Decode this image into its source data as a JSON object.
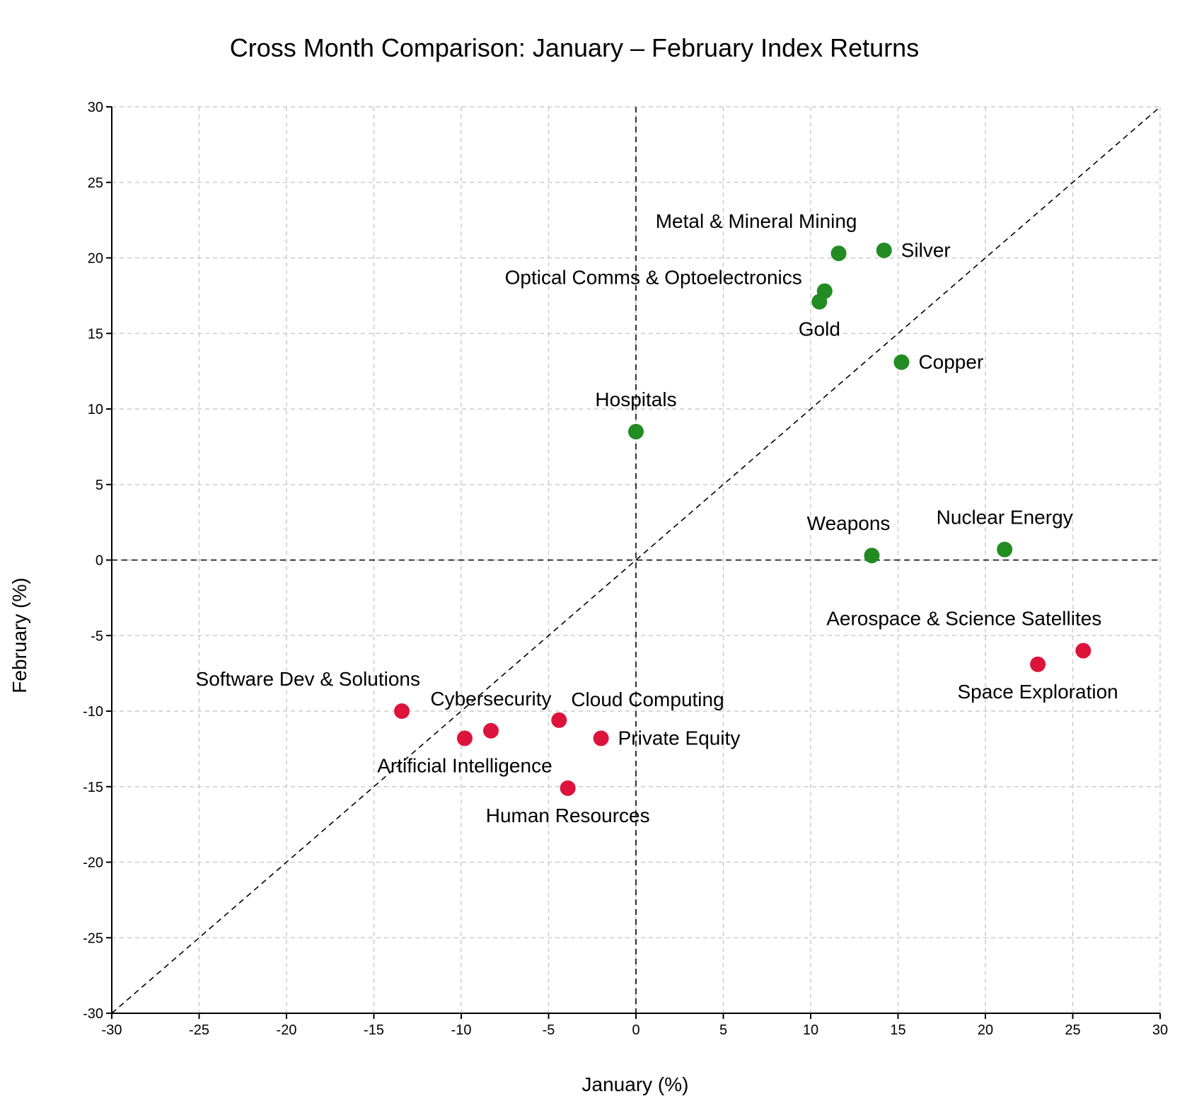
{
  "chart_data": {
    "type": "scatter",
    "title": "Cross Month Comparison: January – February Index Returns",
    "xlabel": "January (%)",
    "ylabel": "February (%)",
    "xlim": [
      -30,
      30
    ],
    "ylim": [
      -30,
      30
    ],
    "xticks": [
      -30,
      -25,
      -20,
      -15,
      -10,
      -5,
      0,
      5,
      10,
      15,
      20,
      25,
      30
    ],
    "yticks": [
      -30,
      -25,
      -20,
      -15,
      -10,
      -5,
      0,
      5,
      10,
      15,
      20,
      25,
      30
    ],
    "grid": true,
    "reference_lines": [
      "y = x",
      "x = 0",
      "y = 0"
    ],
    "colors": {
      "positive": "#228B22",
      "negative": "#DC143C"
    },
    "points": [
      {
        "name": "Metal & Mineral Mining",
        "x": 11.6,
        "y": 20.3,
        "group": "positive",
        "label_pos": "above-left"
      },
      {
        "name": "Silver",
        "x": 14.2,
        "y": 20.5,
        "group": "positive",
        "label_pos": "right"
      },
      {
        "name": "Optical Comms & Optoelectronics",
        "x": 10.8,
        "y": 17.8,
        "group": "positive",
        "label_pos": "left"
      },
      {
        "name": "Gold",
        "x": 10.5,
        "y": 17.1,
        "group": "positive",
        "label_pos": "below"
      },
      {
        "name": "Copper",
        "x": 15.2,
        "y": 13.1,
        "group": "positive",
        "label_pos": "right"
      },
      {
        "name": "Hospitals",
        "x": 0.0,
        "y": 8.5,
        "group": "positive",
        "label_pos": "above"
      },
      {
        "name": "Weapons",
        "x": 13.5,
        "y": 0.3,
        "group": "positive",
        "label_pos": "above-left"
      },
      {
        "name": "Nuclear Energy",
        "x": 21.1,
        "y": 0.7,
        "group": "positive",
        "label_pos": "above"
      },
      {
        "name": "Aerospace & Science Satellites",
        "x": 25.6,
        "y": -6.0,
        "group": "negative",
        "label_pos": "above-left"
      },
      {
        "name": "Space Exploration",
        "x": 23.0,
        "y": -6.9,
        "group": "negative",
        "label_pos": "below"
      },
      {
        "name": "Software Dev & Solutions",
        "x": -13.4,
        "y": -10.0,
        "group": "negative",
        "label_pos": "above-left"
      },
      {
        "name": "Cybersecurity",
        "x": -8.3,
        "y": -11.3,
        "group": "negative",
        "label_pos": "above"
      },
      {
        "name": "Artificial Intelligence",
        "x": -9.8,
        "y": -11.8,
        "group": "negative",
        "label_pos": "below"
      },
      {
        "name": "Cloud Computing",
        "x": -4.4,
        "y": -10.6,
        "group": "negative",
        "label_pos": "above-right"
      },
      {
        "name": "Private Equity",
        "x": -2.0,
        "y": -11.8,
        "group": "negative",
        "label_pos": "right"
      },
      {
        "name": "Human Resources",
        "x": -3.9,
        "y": -15.1,
        "group": "negative",
        "label_pos": "below"
      }
    ]
  }
}
